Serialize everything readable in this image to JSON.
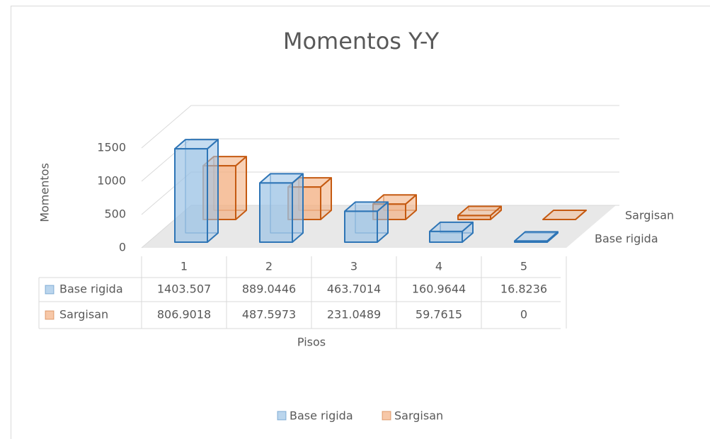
{
  "chart_data": {
    "type": "bar3d",
    "title": "Momentos Y-Y",
    "y_label": "Momentos",
    "x_label": "Pisos",
    "categories": [
      "1",
      "2",
      "3",
      "4",
      "5"
    ],
    "series": [
      {
        "name": "Base rigida",
        "color": "#2e75b6",
        "fill": "#9dc3e6",
        "values": [
          1403.507,
          889.0446,
          463.7014,
          160.9644,
          16.8236
        ]
      },
      {
        "name": "Sargisan",
        "color": "#c55a11",
        "fill": "#f4b183",
        "values": [
          806.9018,
          487.5973,
          231.0489,
          59.7615,
          0
        ]
      }
    ],
    "ylim": [
      0,
      1500
    ],
    "yticks": [
      0,
      500,
      1000,
      1500
    ],
    "grid": true,
    "legend": "bottom"
  }
}
